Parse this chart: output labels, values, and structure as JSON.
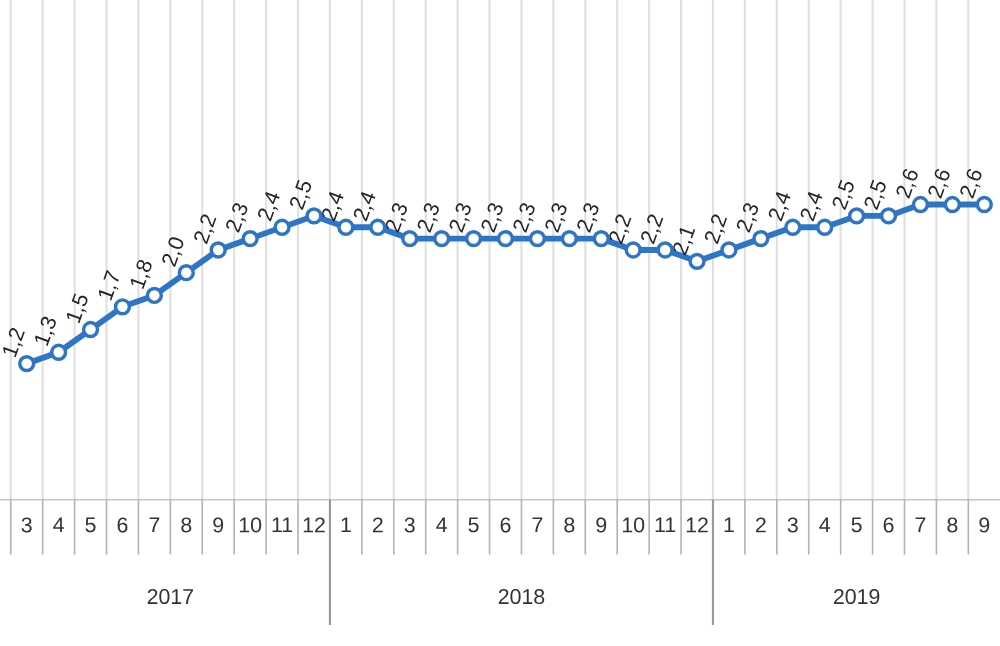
{
  "chart_data": {
    "type": "line",
    "x": [
      "2017-03",
      "2017-04",
      "2017-05",
      "2017-06",
      "2017-07",
      "2017-08",
      "2017-09",
      "2017-10",
      "2017-11",
      "2017-12",
      "2018-01",
      "2018-02",
      "2018-03",
      "2018-04",
      "2018-05",
      "2018-06",
      "2018-07",
      "2018-08",
      "2018-09",
      "2018-10",
      "2018-11",
      "2018-12",
      "2019-01",
      "2019-02",
      "2019-03",
      "2019-04",
      "2019-05",
      "2019-06",
      "2019-07",
      "2019-08",
      "2019-09"
    ],
    "series": [
      {
        "color": "#2e75c6",
        "values": [
          1.2,
          1.3,
          1.5,
          1.7,
          1.8,
          2.0,
          2.2,
          2.3,
          2.4,
          2.5,
          2.4,
          2.4,
          2.3,
          2.3,
          2.3,
          2.3,
          2.3,
          2.3,
          2.3,
          2.2,
          2.2,
          2.1,
          2.2,
          2.3,
          2.4,
          2.4,
          2.5,
          2.5,
          2.6,
          2.6,
          2.6
        ],
        "value_labels": [
          "1,2",
          "1,3",
          "1,5",
          "1,7",
          "1,8",
          "2,0",
          "2,2",
          "2,3",
          "2,4",
          "2,5",
          "2,4",
          "2,4",
          "2,3",
          "2,3",
          "2,3",
          "2,3",
          "2,3",
          "2,3",
          "2,3",
          "2,2",
          "2,2",
          "2,1",
          "2,2",
          "2,3",
          "2,4",
          "2,4",
          "2,5",
          "2,5",
          "2,6",
          "2,6",
          "2,6"
        ]
      }
    ],
    "xlim": [
      "2017-02-06",
      "2019-09-16"
    ],
    "xticks": [
      {
        "value": "2017-03",
        "label": "3"
      },
      {
        "value": "2017-04",
        "label": "4"
      },
      {
        "value": "2017-05",
        "label": "5"
      },
      {
        "value": "2017-06",
        "label": "6"
      },
      {
        "value": "2017-07",
        "label": "7"
      },
      {
        "value": "2017-08",
        "label": "8"
      },
      {
        "value": "2017-09",
        "label": "9"
      },
      {
        "value": "2017-10",
        "label": "10"
      },
      {
        "value": "2017-11",
        "label": "11"
      },
      {
        "value": "2017-12",
        "label": "12"
      },
      {
        "value": "2018-01",
        "label": "1"
      },
      {
        "value": "2018-02",
        "label": "2"
      },
      {
        "value": "2018-03",
        "label": "3"
      },
      {
        "value": "2018-04",
        "label": "4"
      },
      {
        "value": "2018-05",
        "label": "5"
      },
      {
        "value": "2018-06",
        "label": "6"
      },
      {
        "value": "2018-07",
        "label": "7"
      },
      {
        "value": "2018-08",
        "label": "8"
      },
      {
        "value": "2018-09",
        "label": "9"
      },
      {
        "value": "2018-10",
        "label": "10"
      },
      {
        "value": "2018-11",
        "label": "11"
      },
      {
        "value": "2018-12",
        "label": "12"
      },
      {
        "value": "2019-01",
        "label": "1"
      },
      {
        "value": "2019-02",
        "label": "2"
      },
      {
        "value": "2019-03",
        "label": "3"
      },
      {
        "value": "2019-04",
        "label": "4"
      },
      {
        "value": "2019-05",
        "label": "5"
      },
      {
        "value": "2019-06",
        "label": "6"
      },
      {
        "value": "2019-07",
        "label": "7"
      },
      {
        "value": "2019-08",
        "label": "8"
      },
      {
        "value": "2019-09",
        "label": "9"
      }
    ],
    "ylim": [
      0,
      4.4
    ],
    "grid": "x",
    "marker": "circle",
    "line_style": "solid",
    "annotations": [
      "2017",
      "2018",
      "2019"
    ]
  }
}
